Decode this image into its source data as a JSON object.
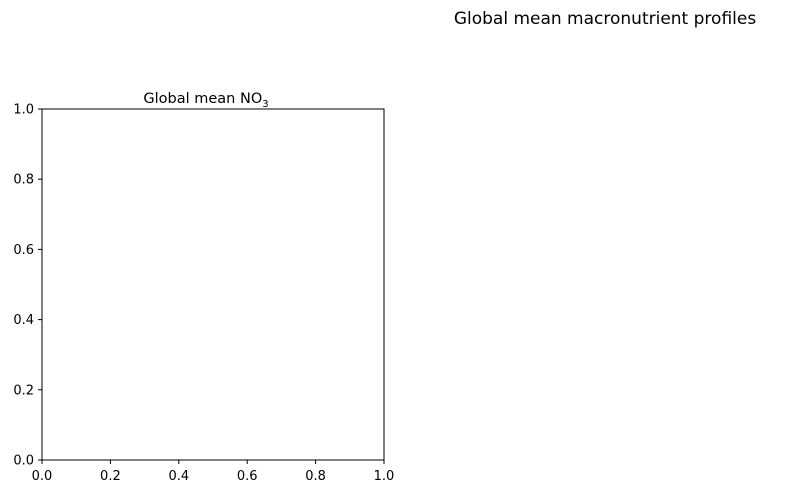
{
  "figure": {
    "suptitle": "Global mean macronutrient profiles"
  },
  "chart_data": [
    {
      "type": "line",
      "title": "Global mean NO",
      "title_subscript": "3",
      "xlabel": "",
      "ylabel": "",
      "xlim": [
        0.0,
        1.0
      ],
      "ylim": [
        0.0,
        1.0
      ],
      "x_ticks": [
        "0.0",
        "0.2",
        "0.4",
        "0.6",
        "0.8",
        "1.0"
      ],
      "y_ticks": [
        "0.0",
        "0.2",
        "0.4",
        "0.6",
        "0.8",
        "1.0"
      ],
      "series": [],
      "grid": false,
      "legend": "none"
    }
  ]
}
